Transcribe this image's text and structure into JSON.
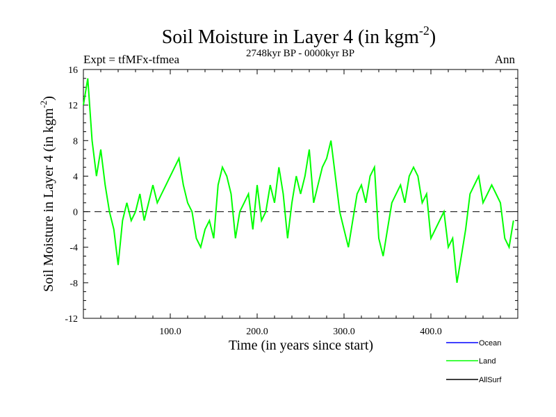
{
  "chart_data": {
    "type": "line",
    "title": "Soil Moisture in Layer 4 (in kgm",
    "title_sup": "-2",
    "title_close": ")",
    "subtitle": "2748kyr BP - 0000kyr BP",
    "expt_label": "Expt = tfMFx-tfmea",
    "season_label": "Ann",
    "xlabel": "Time (in years since start)",
    "ylabel": "Soil Moisture in Layer 4 (in kgm",
    "ylabel_sup": "-2",
    "ylabel_close": ")",
    "xlim": [
      0,
      500
    ],
    "ylim": [
      -12,
      16
    ],
    "x_ticks": [
      100,
      200,
      300,
      400
    ],
    "x_tick_labels": [
      "100.0",
      "200.0",
      "300.0",
      "400.0"
    ],
    "y_ticks": [
      -12,
      -8,
      -4,
      0,
      4,
      8,
      12,
      16
    ],
    "y_tick_labels": [
      "-12",
      "-8",
      "-4",
      "0",
      "4",
      "8",
      "12",
      "16"
    ],
    "zero_line": 0,
    "legend": [
      {
        "name": "Ocean",
        "color": "#0000ff"
      },
      {
        "name": "Land",
        "color": "#00ff00"
      },
      {
        "name": "AllSurf",
        "color": "#000000"
      }
    ],
    "series": [
      {
        "name": "Land",
        "color": "#00ff00",
        "x_start": 0,
        "x_step": 5,
        "values": [
          12,
          15,
          8,
          4,
          7,
          3,
          0,
          -2,
          -6,
          -1,
          1,
          -1,
          0,
          2,
          -1,
          1,
          3,
          1,
          2,
          3,
          4,
          5,
          6,
          3,
          1,
          0,
          -3,
          -4,
          -2,
          -1,
          -3,
          3,
          5,
          4,
          2,
          -3,
          0,
          1,
          2,
          -2,
          3,
          -1,
          0,
          3,
          1,
          5,
          2,
          -3,
          1,
          4,
          2,
          4,
          7,
          1,
          3,
          5,
          6,
          8,
          4,
          0,
          -2,
          -4,
          -1,
          2,
          3,
          1,
          4,
          5,
          -3,
          -5,
          -2,
          1,
          2,
          3,
          1,
          4,
          5,
          4,
          1,
          2,
          -3,
          -2,
          -1,
          0,
          -4,
          -3,
          -8,
          -5,
          -2,
          2,
          3,
          4,
          1,
          2,
          3,
          2,
          1,
          -3,
          -4,
          -1
        ]
      }
    ]
  }
}
